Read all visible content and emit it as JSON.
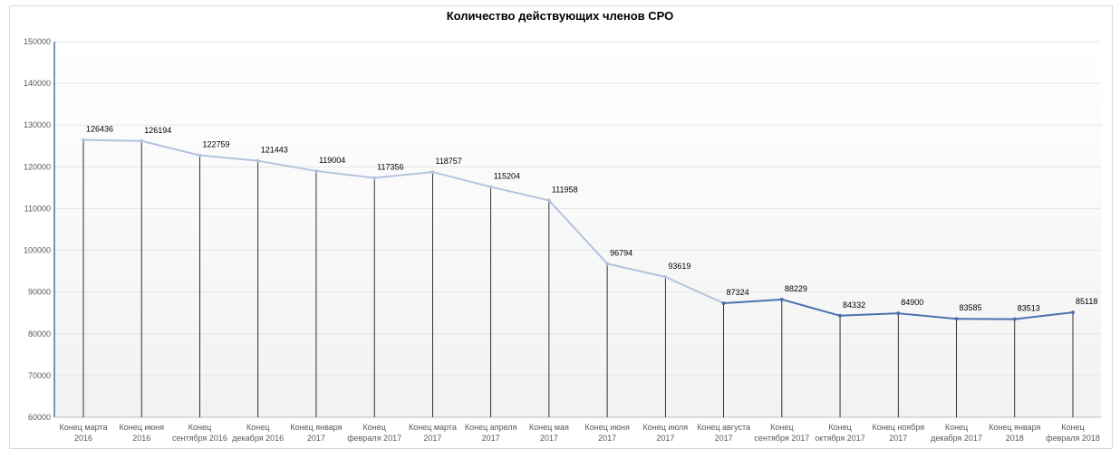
{
  "chart_data": {
    "type": "line",
    "title": "Количество действующих членов СРО",
    "xlabel": "",
    "ylabel": "",
    "ylim": [
      60000,
      150000
    ],
    "yticks": [
      "150000",
      "140000",
      "130000",
      "120000",
      "110000",
      "100000",
      "90000",
      "80000",
      "70000",
      "60000"
    ],
    "grid": true,
    "legend": "none",
    "categories": [
      [
        "Конец марта",
        "2016"
      ],
      [
        "Конец июня",
        "2016"
      ],
      [
        "Конец",
        "сентября 2016"
      ],
      [
        "Конец",
        "декабря 2016"
      ],
      [
        "Конец января",
        "2017"
      ],
      [
        "Конец",
        "февраля 2017"
      ],
      [
        "Конец марта",
        "2017"
      ],
      [
        "Конец апреля",
        "2017"
      ],
      [
        "Конец мая",
        "2017"
      ],
      [
        "Конец июня",
        "2017"
      ],
      [
        "Конец июля",
        "2017"
      ],
      [
        "Конец августа",
        "2017"
      ],
      [
        "Конец",
        "сентября 2017"
      ],
      [
        "Конец",
        "октября 2017"
      ],
      [
        "Конец ноября",
        "2017"
      ],
      [
        "Конец",
        "декабря 2017"
      ],
      [
        "Конец января",
        "2018"
      ],
      [
        "Конец",
        "февраля 2018"
      ]
    ],
    "values": [
      126436,
      126194,
      122759,
      121443,
      119004,
      117356,
      118757,
      115204,
      111958,
      96794,
      93619,
      87324,
      88229,
      84332,
      84900,
      83585,
      83513,
      85118
    ],
    "colors": {
      "line_early": "#b4c3de",
      "line_late": "#4a72b0",
      "drop_line": "#000000",
      "grid": "#e6e6e6",
      "axis": "#4a72b0"
    }
  }
}
